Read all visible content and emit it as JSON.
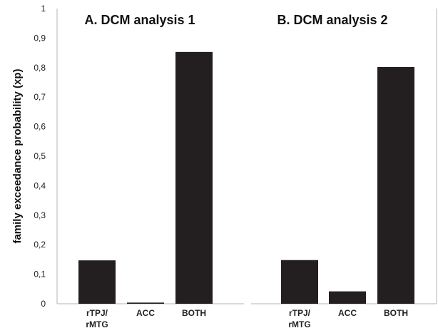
{
  "chart_data": {
    "type": "bar",
    "ylabel": "family exceedance probability (xp)",
    "ylim": [
      0,
      1
    ],
    "yticks": [
      "0",
      "0,1",
      "0,2",
      "0,3",
      "0,4",
      "0,5",
      "0,6",
      "0,7",
      "0,8",
      "0,9",
      "1"
    ],
    "bar_color": "#231f20",
    "panels": [
      {
        "title": "A. DCM analysis 1",
        "categories": [
          "rTPJ/\nrMTG",
          "ACC",
          "BOTH"
        ],
        "values": [
          0.147,
          0.004,
          0.853
        ]
      },
      {
        "title": "B. DCM analysis 2",
        "categories": [
          "rTPJ/\nrMTG",
          "ACC",
          "BOTH"
        ],
        "values": [
          0.148,
          0.042,
          0.802
        ]
      }
    ]
  }
}
